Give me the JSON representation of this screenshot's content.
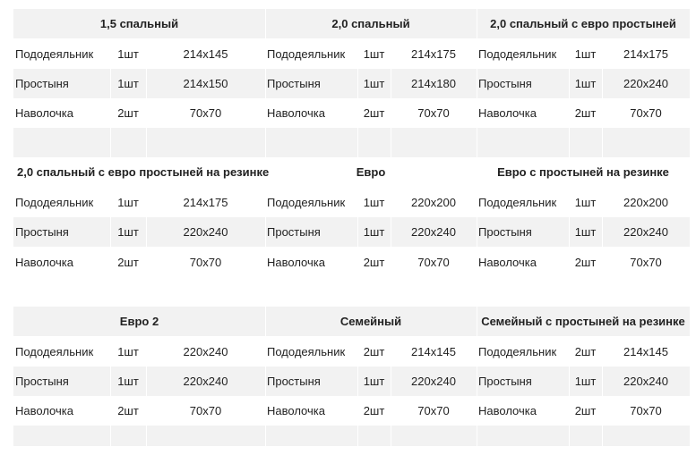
{
  "groups": [
    {
      "title": "1,5 спальный",
      "items": [
        {
          "name": "Пододеяльник",
          "qty": "1шт",
          "size": "214x145"
        },
        {
          "name": "Простыня",
          "qty": "1шт",
          "size": "214x150"
        },
        {
          "name": "Наволочка",
          "qty": "2шт",
          "size": "70x70"
        }
      ]
    },
    {
      "title": "2,0 спальный",
      "items": [
        {
          "name": "Пододеяльник",
          "qty": "1шт",
          "size": "214x175"
        },
        {
          "name": "Простыня",
          "qty": "1шт",
          "size": "214x180"
        },
        {
          "name": "Наволочка",
          "qty": "2шт",
          "size": "70x70"
        }
      ]
    },
    {
      "title": "2,0 спальный с евро простыней",
      "items": [
        {
          "name": "Пододеяльник",
          "qty": "1шт",
          "size": "214x175"
        },
        {
          "name": "Простыня",
          "qty": "1шт",
          "size": "220x240"
        },
        {
          "name": "Наволочка",
          "qty": "2шт",
          "size": "70x70"
        }
      ]
    },
    {
      "title": "2,0 спальный с евро простыней на резинке",
      "items": [
        {
          "name": "Пододеяльник",
          "qty": "1шт",
          "size": "214x175"
        },
        {
          "name": "Простыня",
          "qty": "1шт",
          "size": "220x240"
        },
        {
          "name": "Наволочка",
          "qty": "2шт",
          "size": "70x70"
        }
      ]
    },
    {
      "title": "Евро",
      "items": [
        {
          "name": "Пододеяльник",
          "qty": "1шт",
          "size": "220x200"
        },
        {
          "name": "Простыня",
          "qty": "1шт",
          "size": "220x240"
        },
        {
          "name": "Наволочка",
          "qty": "2шт",
          "size": "70x70"
        }
      ]
    },
    {
      "title": "Евро с простыней на резинке",
      "items": [
        {
          "name": "Пододеяльник",
          "qty": "1шт",
          "size": "220x200"
        },
        {
          "name": "Простыня",
          "qty": "1шт",
          "size": "220x240"
        },
        {
          "name": "Наволочка",
          "qty": "2шт",
          "size": "70x70"
        }
      ]
    },
    {
      "title": "Евро 2",
      "items": [
        {
          "name": "Пододеяльник",
          "qty": "1шт",
          "size": "220x240"
        },
        {
          "name": "Простыня",
          "qty": "1шт",
          "size": "220x240"
        },
        {
          "name": "Наволочка",
          "qty": "2шт",
          "size": "70x70"
        }
      ]
    },
    {
      "title": "Семейный",
      "items": [
        {
          "name": "Пододеяльник",
          "qty": "2шт",
          "size": "214x145"
        },
        {
          "name": "Простыня",
          "qty": "1шт",
          "size": "220x240"
        },
        {
          "name": "Наволочка",
          "qty": "2шт",
          "size": "70x70"
        }
      ]
    },
    {
      "title": "Семейный с простыней на резинке",
      "items": [
        {
          "name": "Пододеяльник",
          "qty": "2шт",
          "size": "214x145"
        },
        {
          "name": "Простыня",
          "qty": "1шт",
          "size": "220x240"
        },
        {
          "name": "Наволочка",
          "qty": "2шт",
          "size": "70x70"
        }
      ]
    }
  ]
}
